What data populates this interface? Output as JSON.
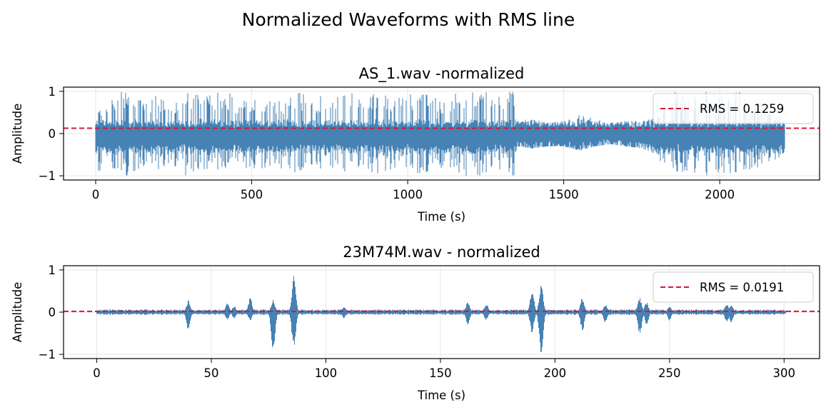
{
  "figure": {
    "suptitle": "Normalized Waveforms with RMS line"
  },
  "colors": {
    "waveform": "#4682b4",
    "rms_line": "#dc143c",
    "grid": "#e6e6e6",
    "axes": "#000000"
  },
  "chart_data": [
    {
      "type": "line",
      "title": "AS_1.wav -normalized",
      "xlabel": "Time (s)",
      "ylabel": "Amplitude",
      "xlim": [
        -103,
        2320
      ],
      "ylim": [
        -1.1,
        1.1
      ],
      "xticks": [
        0,
        500,
        1000,
        1500,
        2000
      ],
      "xtick_labels": [
        "0",
        "500",
        "1000",
        "1500",
        "2000"
      ],
      "yticks": [
        -1,
        0,
        1
      ],
      "ytick_labels": [
        "−1",
        "0",
        "1"
      ],
      "grid": true,
      "legend_position": "upper right",
      "duration_s": 2210,
      "rms": {
        "value": 0.1259,
        "label": "RMS = 0.1259"
      },
      "series": [
        {
          "name": "waveform",
          "x": [
            0,
            40,
            80,
            100,
            150,
            200,
            250,
            280,
            300,
            350,
            400,
            430,
            450,
            500,
            550,
            600,
            650,
            700,
            750,
            800,
            850,
            900,
            950,
            1000,
            1050,
            1100,
            1150,
            1180,
            1200,
            1250,
            1300,
            1345,
            1350,
            1400,
            1450,
            1500,
            1550,
            1600,
            1650,
            1700,
            1750,
            1800,
            1830,
            1850,
            1900,
            1950,
            2000,
            2050,
            2100,
            2150,
            2210
          ],
          "envelope_max": [
            0.5,
            0.7,
            1.0,
            1.0,
            0.85,
            0.9,
            0.75,
            1.0,
            1.0,
            0.9,
            1.0,
            1.0,
            0.8,
            0.85,
            0.8,
            0.8,
            1.0,
            0.85,
            1.0,
            1.0,
            0.9,
            1.0,
            0.85,
            1.0,
            1.0,
            0.8,
            1.0,
            1.0,
            1.0,
            1.0,
            1.0,
            1.0,
            0.35,
            0.35,
            0.25,
            0.3,
            0.45,
            0.35,
            0.25,
            0.3,
            0.3,
            0.45,
            1.0,
            1.0,
            0.9,
            1.0,
            0.9,
            1.0,
            1.0,
            0.7,
            0.4
          ],
          "envelope_min": [
            -1.0,
            -0.8,
            -1.0,
            -1.0,
            -0.8,
            -0.9,
            -0.8,
            -1.0,
            -1.0,
            -0.85,
            -1.0,
            -1.0,
            -0.7,
            -0.9,
            -0.8,
            -0.9,
            -1.0,
            -0.8,
            -1.0,
            -1.0,
            -0.9,
            -1.0,
            -0.85,
            -1.0,
            -1.0,
            -0.85,
            -1.0,
            -1.0,
            -1.0,
            -1.0,
            -1.0,
            -1.0,
            -0.3,
            -0.35,
            -0.3,
            -0.3,
            -0.4,
            -0.3,
            -0.25,
            -0.3,
            -0.35,
            -0.5,
            -1.0,
            -1.0,
            -0.9,
            -1.0,
            -0.95,
            -1.0,
            -1.0,
            -0.7,
            -0.6
          ]
        }
      ]
    },
    {
      "type": "line",
      "title": "23M74M.wav - normalized",
      "xlabel": "Time (s)",
      "ylabel": "Amplitude",
      "xlim": [
        -14.5,
        315.5
      ],
      "ylim": [
        -1.1,
        1.1
      ],
      "xticks": [
        0,
        50,
        100,
        150,
        200,
        250,
        300
      ],
      "xtick_labels": [
        "0",
        "50",
        "100",
        "150",
        "200",
        "250",
        "300"
      ],
      "yticks": [
        -1,
        0,
        1
      ],
      "ytick_labels": [
        "−1",
        "0",
        "1"
      ],
      "grid": true,
      "legend_position": "upper right",
      "duration_s": 301,
      "rms": {
        "value": 0.0191,
        "label": "RMS = 0.0191"
      },
      "series": [
        {
          "name": "waveform",
          "events": [
            {
              "t": 40,
              "max": 0.28,
              "min": -0.45
            },
            {
              "t": 57,
              "max": 0.22,
              "min": -0.2
            },
            {
              "t": 60,
              "max": 0.15,
              "min": -0.15
            },
            {
              "t": 67,
              "max": 0.35,
              "min": -0.2
            },
            {
              "t": 77,
              "max": 0.3,
              "min": -0.97
            },
            {
              "t": 86,
              "max": 0.88,
              "min": -0.9
            },
            {
              "t": 108,
              "max": 0.12,
              "min": -0.15
            },
            {
              "t": 162,
              "max": 0.25,
              "min": -0.3
            },
            {
              "t": 170,
              "max": 0.2,
              "min": -0.2
            },
            {
              "t": 190,
              "max": 0.55,
              "min": -0.5
            },
            {
              "t": 194,
              "max": 0.65,
              "min": -1.0
            },
            {
              "t": 212,
              "max": 0.35,
              "min": -0.45
            },
            {
              "t": 222,
              "max": 0.2,
              "min": -0.25
            },
            {
              "t": 237,
              "max": 0.35,
              "min": -0.55
            },
            {
              "t": 240,
              "max": 0.25,
              "min": -0.3
            },
            {
              "t": 250,
              "max": 0.15,
              "min": -0.2
            },
            {
              "t": 275,
              "max": 0.22,
              "min": -0.25
            },
            {
              "t": 277,
              "max": 0.18,
              "min": -0.25
            }
          ]
        }
      ]
    }
  ]
}
